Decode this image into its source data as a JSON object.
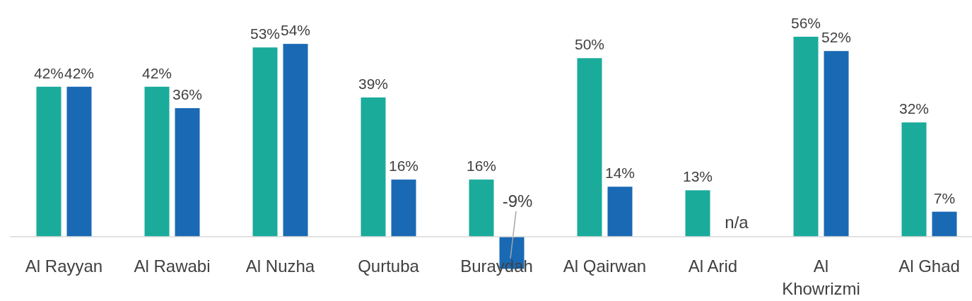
{
  "chart_data": {
    "type": "bar",
    "categories": [
      "Al Rayyan",
      "Al Rawabi",
      "Al Nuzha",
      "Qurtuba",
      "Buraydah",
      "Al Qairwan",
      "Al Arid",
      "Al Khowrizmi",
      "Al Ghad"
    ],
    "series": [
      {
        "color": "#1aab9b",
        "values": [
          42,
          42,
          53,
          39,
          16,
          50,
          13,
          56,
          32
        ],
        "value_labels": [
          "42%",
          "42%",
          "53%",
          "39%",
          "16%",
          "50%",
          "13%",
          "56%",
          "32%"
        ]
      },
      {
        "color": "#1a69b4",
        "values": [
          42,
          36,
          54,
          16,
          -9,
          14,
          null,
          52,
          7
        ],
        "value_labels": [
          "42%",
          "36%",
          "54%",
          "16%",
          "-9%",
          "14%",
          "n/a",
          "52%",
          "7%"
        ]
      }
    ]
  }
}
